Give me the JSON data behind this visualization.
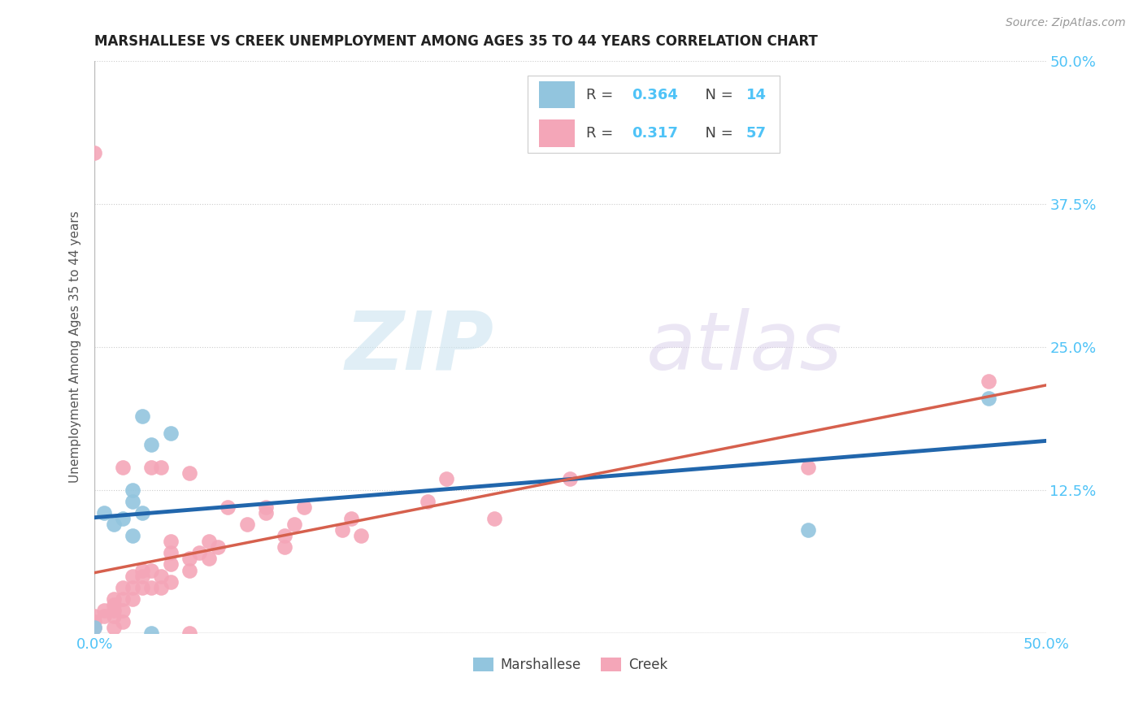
{
  "title": "MARSHALLESE VS CREEK UNEMPLOYMENT AMONG AGES 35 TO 44 YEARS CORRELATION CHART",
  "source": "Source: ZipAtlas.com",
  "ylabel": "Unemployment Among Ages 35 to 44 years",
  "xlim": [
    0.0,
    0.5
  ],
  "ylim": [
    0.0,
    0.5
  ],
  "xticks": [
    0.0,
    0.125,
    0.25,
    0.375,
    0.5
  ],
  "yticks": [
    0.0,
    0.125,
    0.25,
    0.375,
    0.5
  ],
  "xtick_labels": [
    "0.0%",
    "",
    "",
    "",
    "50.0%"
  ],
  "ytick_labels": [
    "",
    "12.5%",
    "25.0%",
    "37.5%",
    "50.0%"
  ],
  "marshallese_color": "#92c5de",
  "creek_color": "#f4a6b8",
  "marshallese_line_color": "#2166ac",
  "creek_line_color": "#d6604d",
  "background_color": "#ffffff",
  "grid_color": "#cccccc",
  "watermark_zip": "ZIP",
  "watermark_atlas": "atlas",
  "legend_R1": "0.364",
  "legend_N1": "14",
  "legend_R2": "0.317",
  "legend_N2": "57",
  "marshallese_x": [
    0.0,
    0.005,
    0.01,
    0.015,
    0.02,
    0.02,
    0.02,
    0.025,
    0.025,
    0.03,
    0.03,
    0.04,
    0.375,
    0.47
  ],
  "marshallese_y": [
    0.005,
    0.105,
    0.095,
    0.1,
    0.085,
    0.115,
    0.125,
    0.19,
    0.105,
    0.0,
    0.165,
    0.175,
    0.09,
    0.205
  ],
  "creek_x": [
    0.0,
    0.0,
    0.0,
    0.0,
    0.005,
    0.005,
    0.01,
    0.01,
    0.01,
    0.01,
    0.01,
    0.015,
    0.015,
    0.015,
    0.015,
    0.015,
    0.02,
    0.02,
    0.02,
    0.025,
    0.025,
    0.025,
    0.03,
    0.03,
    0.03,
    0.035,
    0.035,
    0.035,
    0.04,
    0.04,
    0.04,
    0.04,
    0.05,
    0.05,
    0.05,
    0.05,
    0.055,
    0.06,
    0.06,
    0.065,
    0.07,
    0.08,
    0.09,
    0.09,
    0.1,
    0.1,
    0.105,
    0.11,
    0.13,
    0.135,
    0.14,
    0.175,
    0.185,
    0.21,
    0.25,
    0.375,
    0.47
  ],
  "creek_y": [
    0.005,
    0.01,
    0.015,
    0.42,
    0.015,
    0.02,
    0.005,
    0.015,
    0.02,
    0.025,
    0.03,
    0.01,
    0.02,
    0.03,
    0.04,
    0.145,
    0.03,
    0.04,
    0.05,
    0.04,
    0.05,
    0.055,
    0.04,
    0.055,
    0.145,
    0.04,
    0.05,
    0.145,
    0.045,
    0.06,
    0.07,
    0.08,
    0.0,
    0.055,
    0.065,
    0.14,
    0.07,
    0.065,
    0.08,
    0.075,
    0.11,
    0.095,
    0.11,
    0.105,
    0.075,
    0.085,
    0.095,
    0.11,
    0.09,
    0.1,
    0.085,
    0.115,
    0.135,
    0.1,
    0.135,
    0.145,
    0.22
  ]
}
